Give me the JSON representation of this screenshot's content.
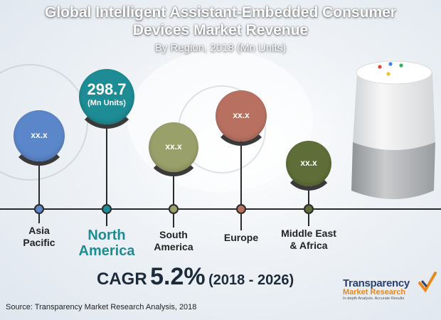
{
  "header": {
    "title_line1": "Global Intelligent Assistant-Embedded Consumer",
    "title_line2": "Devices Market Revenue",
    "subtitle": "By Region, 2018 (Mn Units)"
  },
  "chart_data": {
    "type": "bubble-timeline",
    "title": "Global Intelligent Assistant-Embedded Consumer Devices Market Revenue",
    "subtitle": "By Region, 2018 (Mn Units)",
    "categories": [
      "Asia Pacific",
      "North America",
      "South America",
      "Europe",
      "Middle East & Africa"
    ],
    "regions": [
      {
        "label_line1": "Asia",
        "label_line2": "Pacific",
        "value_text": "xx.x",
        "color": "#5b86c9"
      },
      {
        "label_line1": "North",
        "label_line2": "America",
        "value_text": "298.7",
        "unit_text": "(Mn Units)",
        "color": "#1e8c94",
        "highlight": true
      },
      {
        "label_line1": "South",
        "label_line2": "America",
        "value_text": "xx.x",
        "color": "#9aa06a"
      },
      {
        "label_line1": "Europe",
        "label_line2": "",
        "value_text": "xx.x",
        "color": "#b87161"
      },
      {
        "label_line1": "Middle East",
        "label_line2": "& Africa",
        "value_text": "xx.x",
        "color": "#5f6e38"
      }
    ],
    "highlight_value": 298.7,
    "unit": "Mn Units",
    "year": 2018
  },
  "cagr": {
    "label": "CAGR",
    "value": "5.2%",
    "period": "(2018 - 2026)"
  },
  "source": "Source: Transparency Market Research Analysis, 2018",
  "logo": {
    "line1": "Transparency",
    "line2": "Market Research",
    "tagline": "In-depth Analysis. Accurate Results"
  },
  "colors": {
    "accent": "#1e8c94",
    "dark": "#1c2a3a",
    "logo_orange": "#e8891c",
    "logo_blue": "#2a3f73"
  }
}
